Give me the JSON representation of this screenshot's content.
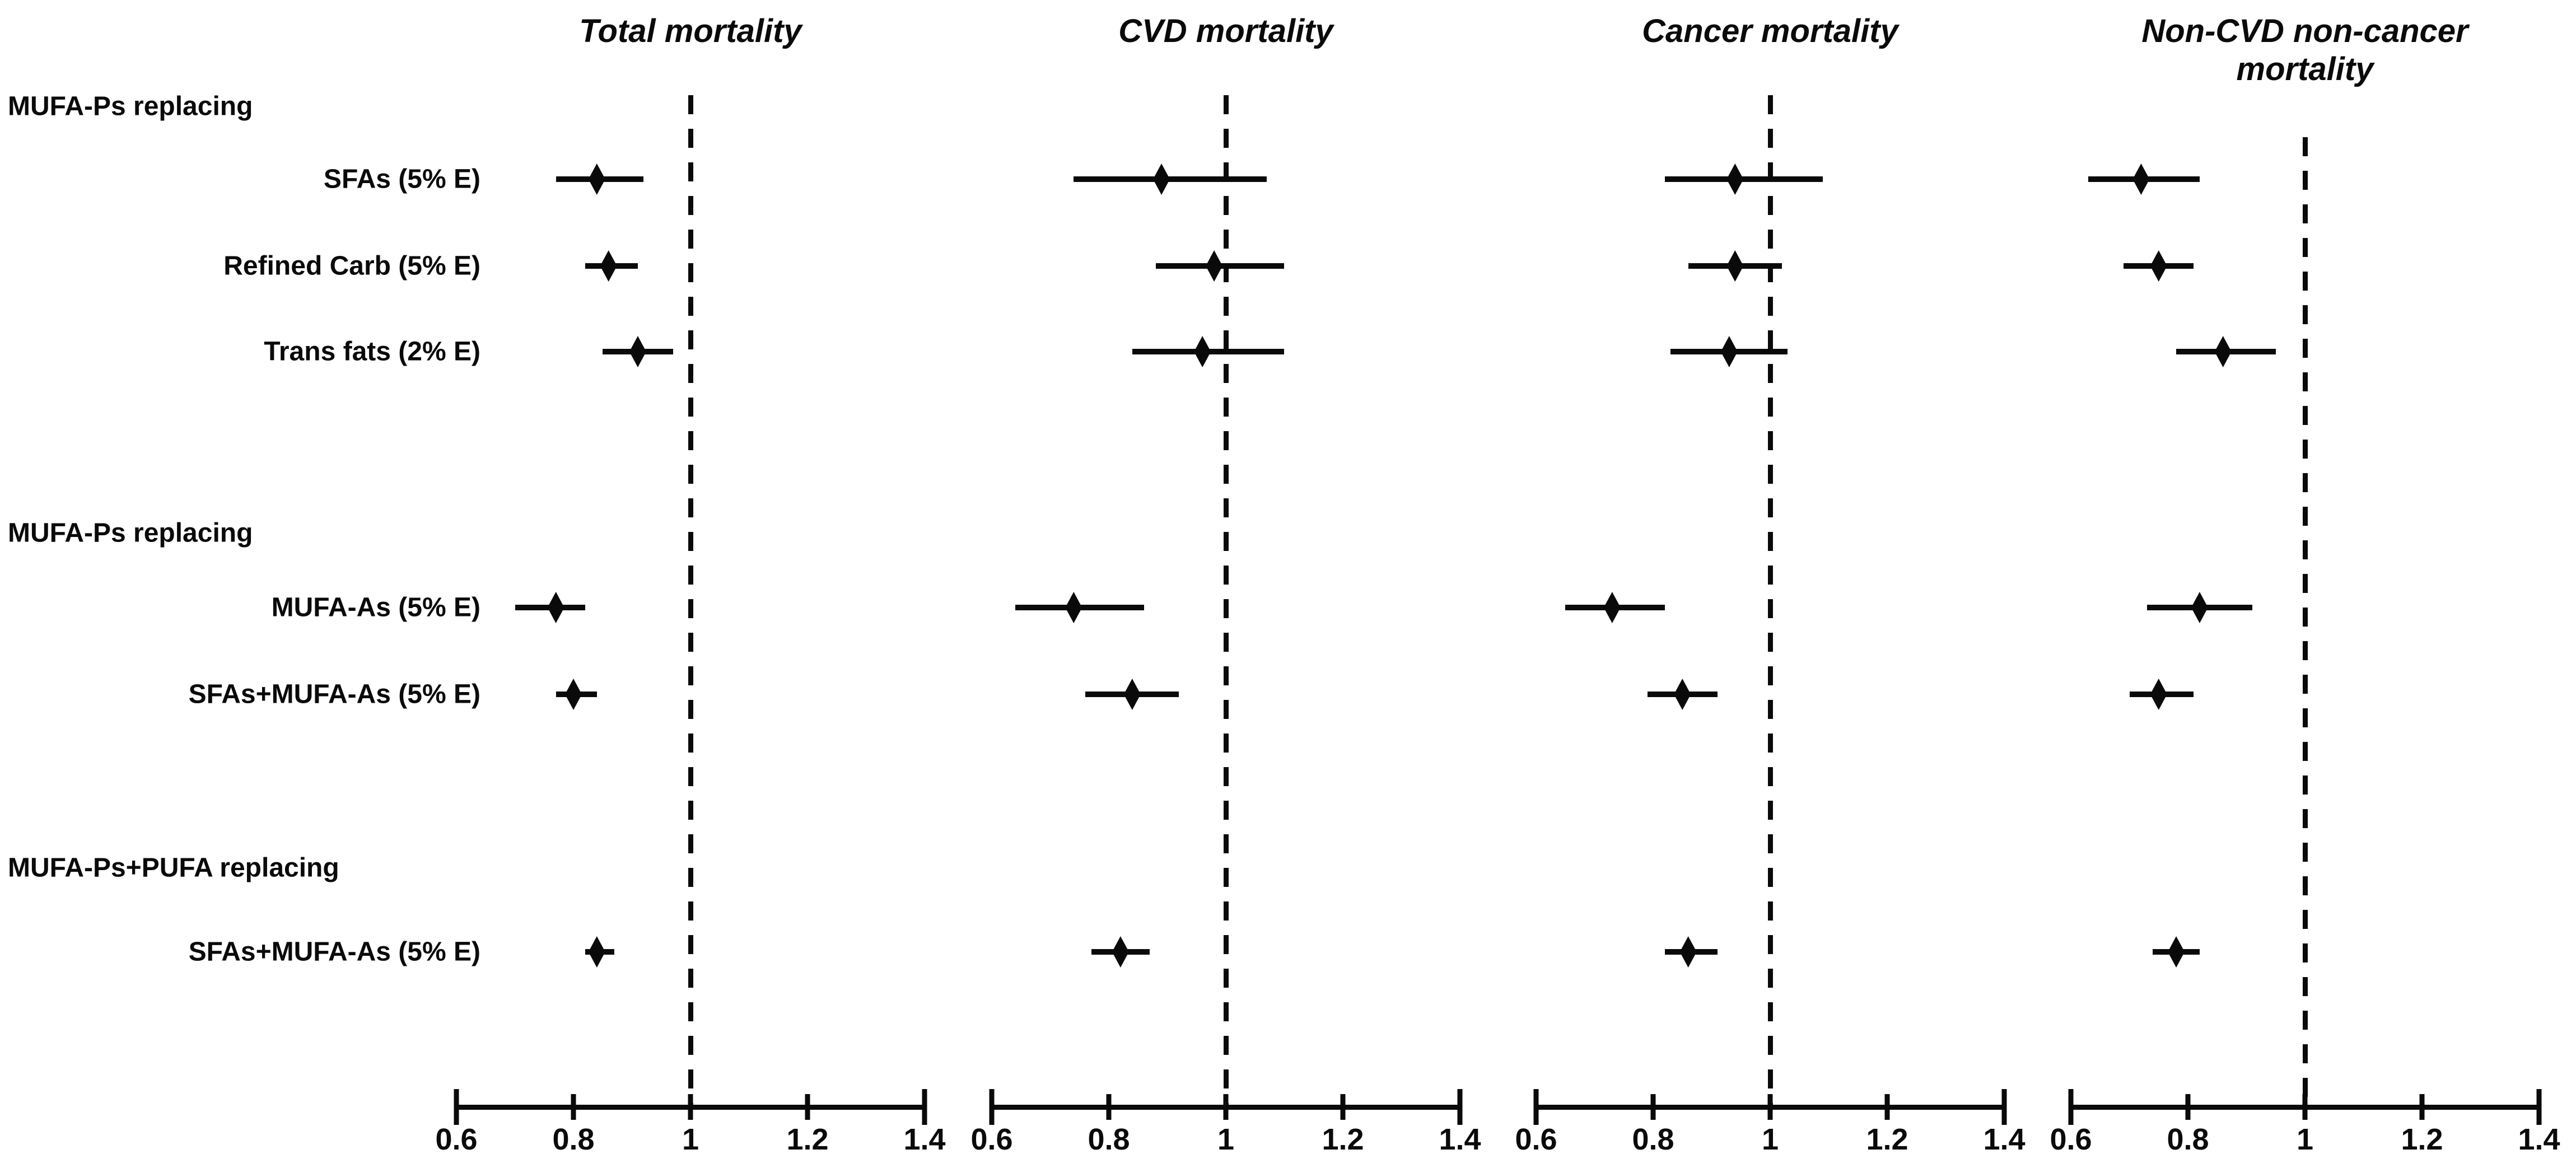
{
  "chart_data": {
    "type": "forest",
    "description": "Forest plot of hazard ratios (diamond point estimate with 95% CI line) for replacement of dietary fats, across four mortality outcomes",
    "x_axis": {
      "range": [
        0.6,
        1.4
      ],
      "ticks": [
        0.6,
        0.8,
        1,
        1.2,
        1.4
      ],
      "tick_labels": [
        "0.6",
        "0.8",
        "1",
        "1.2",
        "1.4"
      ],
      "reference_line": 1,
      "grid": false
    },
    "panels": [
      {
        "key": "total",
        "title": "Total mortality"
      },
      {
        "key": "cvd",
        "title": "CVD mortality"
      },
      {
        "key": "cancer",
        "title": "Cancer mortality"
      },
      {
        "key": "noncvd",
        "title": "Non-CVD non-cancer mortality"
      }
    ],
    "groups": [
      {
        "header": "MUFA-Ps replacing",
        "items": [
          {
            "label": "SFAs (5% E)",
            "total": {
              "est": 0.84,
              "lo": 0.77,
              "hi": 0.92
            },
            "cvd": {
              "est": 0.89,
              "lo": 0.74,
              "hi": 1.07
            },
            "cancer": {
              "est": 0.94,
              "lo": 0.82,
              "hi": 1.09
            },
            "noncvd": {
              "est": 0.72,
              "lo": 0.63,
              "hi": 0.82
            }
          },
          {
            "label": "Refined Carb (5% E)",
            "total": {
              "est": 0.86,
              "lo": 0.82,
              "hi": 0.91
            },
            "cvd": {
              "est": 0.98,
              "lo": 0.88,
              "hi": 1.1
            },
            "cancer": {
              "est": 0.94,
              "lo": 0.86,
              "hi": 1.02
            },
            "noncvd": {
              "est": 0.75,
              "lo": 0.69,
              "hi": 0.81
            }
          },
          {
            "label": "Trans fats (2% E)",
            "total": {
              "est": 0.91,
              "lo": 0.85,
              "hi": 0.97
            },
            "cvd": {
              "est": 0.96,
              "lo": 0.84,
              "hi": 1.1
            },
            "cancer": {
              "est": 0.93,
              "lo": 0.83,
              "hi": 1.03
            },
            "noncvd": {
              "est": 0.86,
              "lo": 0.78,
              "hi": 0.95
            }
          }
        ]
      },
      {
        "header": "MUFA-Ps replacing",
        "items": [
          {
            "label": "MUFA-As (5% E)",
            "total": {
              "est": 0.77,
              "lo": 0.7,
              "hi": 0.82
            },
            "cvd": {
              "est": 0.74,
              "lo": 0.64,
              "hi": 0.86
            },
            "cancer": {
              "est": 0.73,
              "lo": 0.65,
              "hi": 0.82
            },
            "noncvd": {
              "est": 0.82,
              "lo": 0.73,
              "hi": 0.91
            }
          },
          {
            "label": "SFAs+MUFA-As (5% E)",
            "total": {
              "est": 0.8,
              "lo": 0.77,
              "hi": 0.84
            },
            "cvd": {
              "est": 0.84,
              "lo": 0.76,
              "hi": 0.92
            },
            "cancer": {
              "est": 0.85,
              "lo": 0.79,
              "hi": 0.91
            },
            "noncvd": {
              "est": 0.75,
              "lo": 0.7,
              "hi": 0.81
            }
          }
        ]
      },
      {
        "header": "MUFA-Ps+PUFA replacing",
        "items": [
          {
            "label": "SFAs+MUFA-As (5% E)",
            "total": {
              "est": 0.84,
              "lo": 0.82,
              "hi": 0.87
            },
            "cvd": {
              "est": 0.82,
              "lo": 0.77,
              "hi": 0.87
            },
            "cancer": {
              "est": 0.86,
              "lo": 0.82,
              "hi": 0.91
            },
            "noncvd": {
              "est": 0.78,
              "lo": 0.74,
              "hi": 0.82
            }
          }
        ]
      }
    ],
    "colors": {
      "marker": "#0a0a0a",
      "ci_line": "#0a0a0a",
      "reference_line": "#0a0a0a",
      "background": "#ffffff"
    }
  }
}
